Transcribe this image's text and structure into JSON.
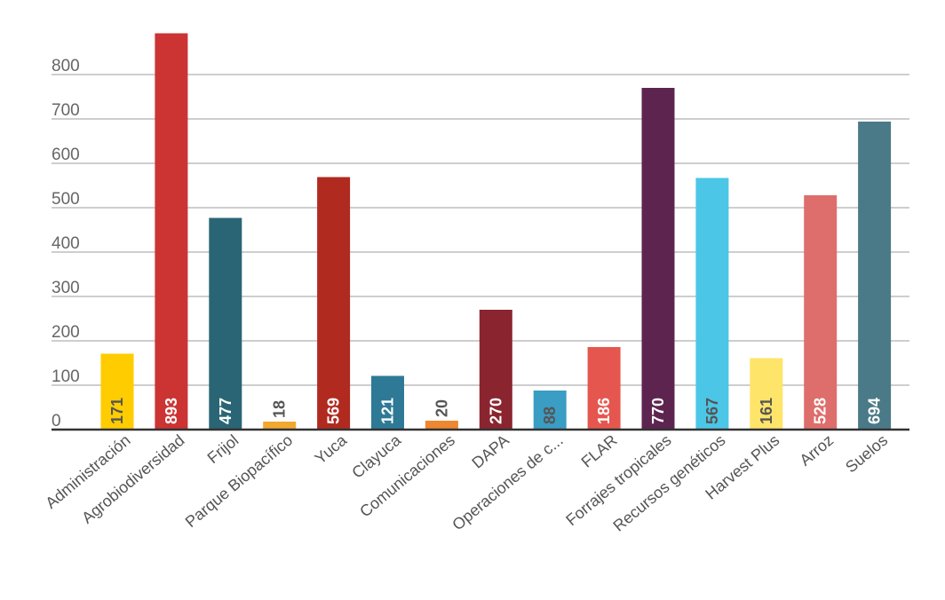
{
  "chart_data": {
    "type": "bar",
    "categories": [
      "Administración",
      "Agrobiodiversidad",
      "Frijol",
      "Parque Biopacífico",
      "Yuca",
      "Clayuca",
      "Comunicaciones",
      "DAPA",
      "Operaciones de c...",
      "FLAR",
      "Forrajes tropicales",
      "Recursos genéticos",
      "Harvest Plus",
      "Arroz",
      "Suelos"
    ],
    "values": [
      171,
      893,
      477,
      18,
      569,
      121,
      20,
      270,
      88,
      186,
      770,
      567,
      161,
      528,
      694
    ],
    "colors": [
      "#FFCC00",
      "#CC3333",
      "#2A6575",
      "#F0A830",
      "#B02A20",
      "#2E7A96",
      "#EE8730",
      "#8A2530",
      "#3A9DC3",
      "#E5574E",
      "#5E2450",
      "#4CC6E6",
      "#FFE46A",
      "#DE6E6B",
      "#4A7A87"
    ],
    "label_colors": [
      "#555555",
      "#ffffff",
      "#ffffff",
      "#555555",
      "#ffffff",
      "#ffffff",
      "#555555",
      "#ffffff",
      "#555555",
      "#ffffff",
      "#ffffff",
      "#555555",
      "#555555",
      "#ffffff",
      "#ffffff"
    ],
    "yticks": [
      0,
      100,
      200,
      300,
      400,
      500,
      600,
      700,
      800
    ],
    "ylim": [
      0,
      900
    ],
    "grid": true,
    "title": "",
    "xlabel": "",
    "ylabel": ""
  }
}
